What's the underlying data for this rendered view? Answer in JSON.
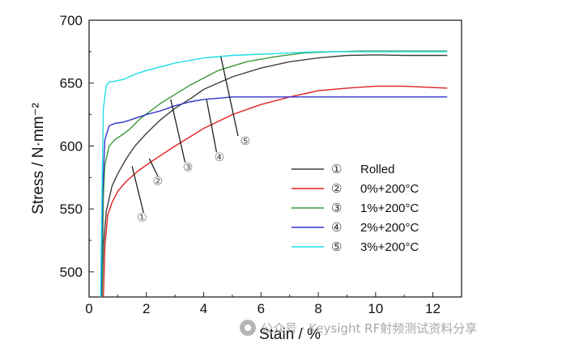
{
  "chart_data": {
    "type": "line",
    "title": "",
    "xlabel": "Stain / %",
    "ylabel": "Stress / N·mm⁻²",
    "xlim": [
      0,
      13
    ],
    "ylim": [
      480,
      700
    ],
    "xticks": [
      "0",
      "2",
      "4",
      "6",
      "8",
      "10",
      "12"
    ],
    "yticks": [
      "500",
      "550",
      "600",
      "650",
      "700"
    ],
    "grid": false,
    "legend_position": "lower-right",
    "series": [
      {
        "name": "Rolled",
        "marker": "①",
        "color": "#404040",
        "x": [
          0.45,
          0.5,
          0.6,
          0.8,
          1.0,
          1.3,
          1.6,
          2.0,
          2.5,
          3.0,
          3.5,
          4.0,
          5.0,
          6.0,
          7.0,
          8.0,
          9.0,
          10.0,
          11.0,
          12.5
        ],
        "y": [
          480,
          520,
          548,
          568,
          578,
          590,
          600,
          610,
          621,
          630,
          637,
          645,
          655,
          662,
          667,
          670,
          672,
          672.5,
          672,
          672
        ]
      },
      {
        "name": "0%+200°C",
        "marker": "②",
        "color": "#e02020",
        "x": [
          0.5,
          0.55,
          0.65,
          0.8,
          1.0,
          1.3,
          1.7,
          2.2,
          3.0,
          4.0,
          5.0,
          6.0,
          7.0,
          8.0,
          9.0,
          10.0,
          11.0,
          12.5
        ],
        "y": [
          480,
          520,
          545,
          555,
          564,
          572,
          580,
          588,
          600,
          614,
          625,
          633,
          639,
          644,
          646,
          647.5,
          647.5,
          646
        ]
      },
      {
        "name": "1%+200°C",
        "marker": "③",
        "color": "#3a9a3a",
        "x": [
          0.45,
          0.5,
          0.55,
          0.7,
          0.9,
          1.1,
          1.4,
          1.8,
          2.5,
          3.5,
          4.5,
          5.5,
          6.5,
          7.5,
          8.5,
          9.5,
          10.5,
          12.5
        ],
        "y": [
          480,
          560,
          585,
          600,
          605,
          608,
          613,
          622,
          634,
          648,
          660,
          667,
          671,
          674,
          675,
          675.5,
          675.5,
          675.5
        ]
      },
      {
        "name": "2%+200°C",
        "marker": "④",
        "color": "#3333cc",
        "x": [
          0.42,
          0.47,
          0.55,
          0.7,
          0.9,
          1.2,
          1.6,
          2.0,
          2.5,
          3.0,
          3.5,
          4.0,
          4.5,
          5.0,
          6.0,
          7.0,
          12.5
        ],
        "y": [
          480,
          560,
          605,
          616,
          618,
          619,
          622,
          625,
          628,
          632,
          635,
          637,
          638,
          639,
          639,
          639,
          639
        ]
      },
      {
        "name": "3%+200°C",
        "marker": "⑤",
        "color": "#22dde8",
        "x": [
          0.4,
          0.45,
          0.5,
          0.6,
          0.7,
          0.9,
          1.2,
          1.6,
          2.0,
          3.0,
          4.0,
          5.0,
          6.0,
          7.0,
          8.0,
          9.0,
          10.0,
          12.5
        ],
        "y": [
          480,
          560,
          630,
          648,
          651,
          651.5,
          653,
          657,
          660,
          666,
          670,
          672,
          673,
          674,
          675,
          675,
          675,
          675
        ]
      }
    ],
    "annotations": [
      {
        "label": "①",
        "from": [
          1.5,
          584
        ],
        "to": [
          1.9,
          547
        ],
        "text_at": [
          1.85,
          540
        ]
      },
      {
        "label": "②",
        "from": [
          2.1,
          590
        ],
        "to": [
          2.4,
          576
        ],
        "text_at": [
          2.4,
          569
        ]
      },
      {
        "label": "③",
        "from": [
          2.85,
          637
        ],
        "to": [
          3.35,
          587
        ],
        "text_at": [
          3.45,
          580
        ]
      },
      {
        "label": "④",
        "from": [
          4.1,
          637
        ],
        "to": [
          4.45,
          595
        ],
        "text_at": [
          4.55,
          588
        ]
      },
      {
        "label": "⑤",
        "from": [
          4.6,
          671
        ],
        "to": [
          5.2,
          608
        ],
        "text_at": [
          5.45,
          601
        ]
      }
    ]
  },
  "watermark": {
    "text": "公众号 · Keysight RF射频测试资料分享",
    "icon": "wechat-icon"
  }
}
